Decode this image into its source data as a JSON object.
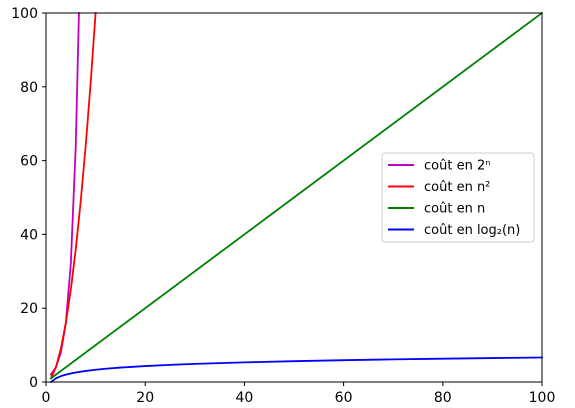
{
  "chart_data": {
    "type": "line",
    "title": "",
    "xlabel": "",
    "ylabel": "",
    "xlim": [
      0,
      100
    ],
    "ylim": [
      0,
      100
    ],
    "x_ticks": [
      "0",
      "20",
      "40",
      "60",
      "80",
      "100"
    ],
    "y_ticks": [
      "0",
      "20",
      "40",
      "60",
      "80",
      "100"
    ],
    "grid": false,
    "legend_position": "center-right",
    "series": [
      {
        "name": "coût en 2ⁿ",
        "color": "#bf00bf",
        "x": [
          1,
          2,
          3,
          4,
          5,
          6,
          6.64
        ],
        "y": [
          2,
          4,
          8,
          16,
          32,
          64,
          100
        ]
      },
      {
        "name": "coût en n²",
        "color": "#ff0000",
        "x": [
          1,
          2,
          3,
          4,
          5,
          6,
          7,
          8,
          9,
          10
        ],
        "y": [
          1,
          4,
          9,
          16,
          25,
          36,
          49,
          64,
          81,
          100
        ]
      },
      {
        "name": "coût en n",
        "color": "#008000",
        "x": [
          1,
          100
        ],
        "y": [
          1,
          100
        ]
      },
      {
        "name": "coût en log₂(n)",
        "color": "#0000ff",
        "x": [
          1,
          2,
          3,
          4,
          5,
          6,
          8,
          10,
          12,
          15,
          20,
          25,
          30,
          40,
          50,
          60,
          70,
          80,
          90,
          100
        ],
        "y": [
          0,
          1,
          1.58,
          2,
          2.32,
          2.58,
          3,
          3.32,
          3.58,
          3.91,
          4.32,
          4.64,
          4.91,
          5.32,
          5.64,
          5.91,
          6.13,
          6.32,
          6.49,
          6.64
        ]
      }
    ]
  }
}
